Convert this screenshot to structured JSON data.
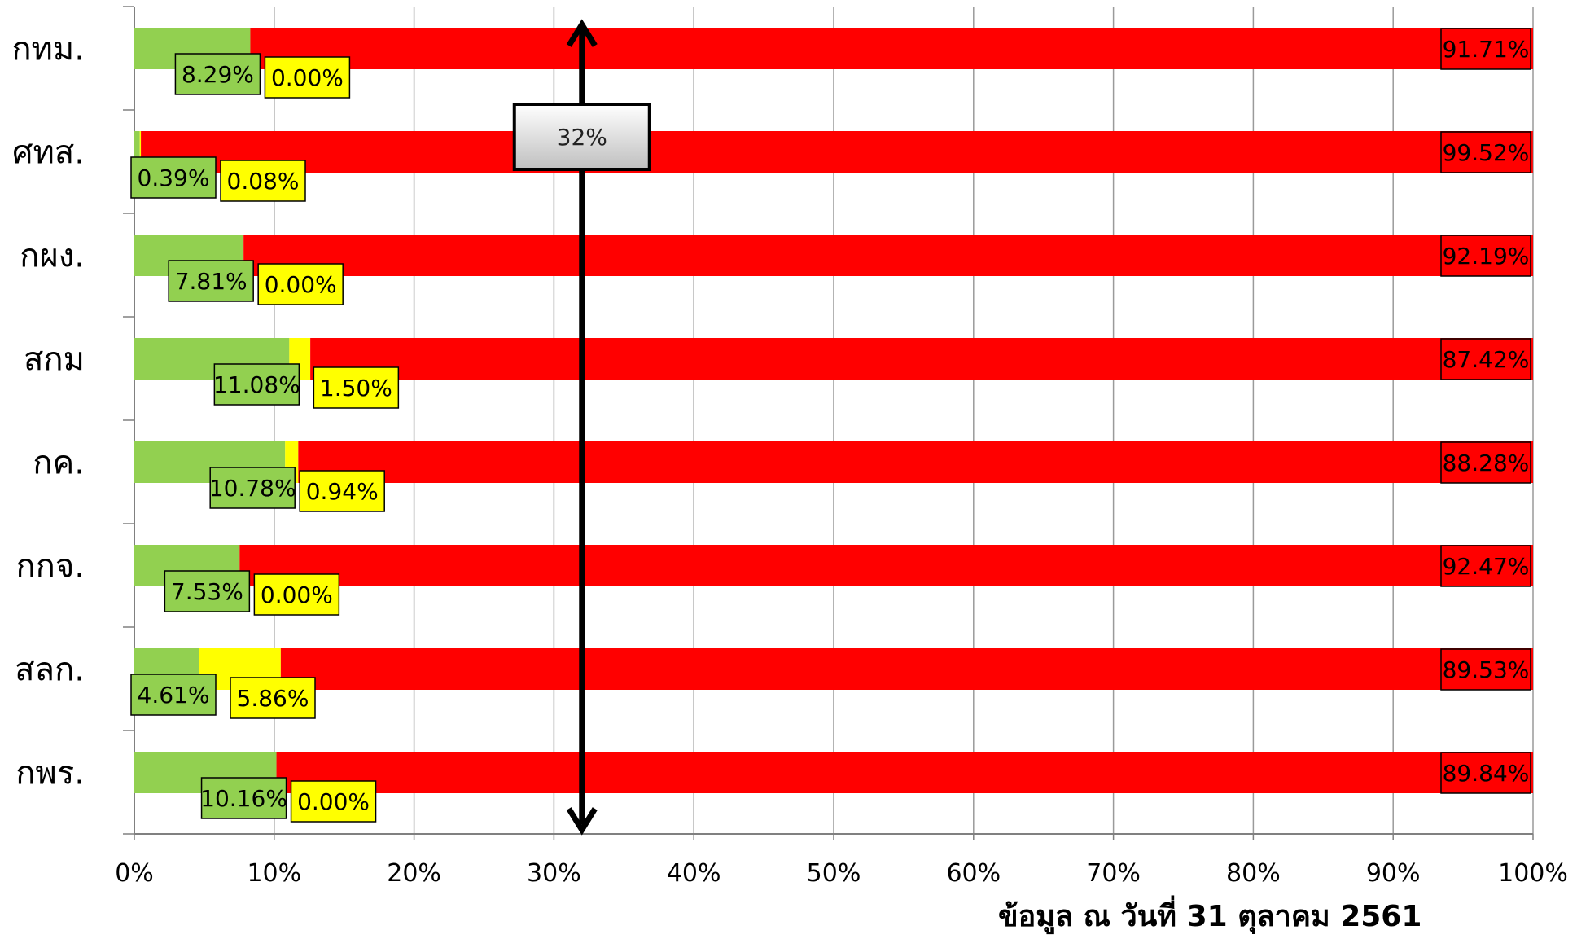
{
  "chart_data": {
    "type": "bar",
    "stacked": true,
    "orientation": "horizontal",
    "categories": [
      "กทม.",
      "ศทส.",
      "กผง.",
      "สกม",
      "กค.",
      "กกจ.",
      "สลก.",
      "กพร."
    ],
    "series": [
      {
        "color": "#92d050",
        "values": [
          8.29,
          0.39,
          7.81,
          11.08,
          10.78,
          7.53,
          4.61,
          10.16
        ],
        "labels": [
          "8.29%",
          "0.39%",
          "7.81%",
          "11.08%",
          "10.78%",
          "7.53%",
          "4.61%",
          "10.16%"
        ]
      },
      {
        "color": "#ffff00",
        "values": [
          0.0,
          0.08,
          0.0,
          1.5,
          0.94,
          0.0,
          5.86,
          0.0
        ],
        "labels": [
          "0.00%",
          "0.08%",
          "0.00%",
          "1.50%",
          "0.94%",
          "0.00%",
          "5.86%",
          "0.00%"
        ]
      },
      {
        "color": "#ff0000",
        "values": [
          91.71,
          99.52,
          92.19,
          87.42,
          88.28,
          92.47,
          89.53,
          89.84
        ],
        "labels": [
          "91.71%",
          "99.52%",
          "92.19%",
          "87.42%",
          "88.28%",
          "92.47%",
          "89.53%",
          "89.84%"
        ]
      }
    ],
    "xlim": [
      0,
      100
    ],
    "xticks": [
      "0%",
      "10%",
      "20%",
      "30%",
      "40%",
      "50%",
      "60%",
      "70%",
      "80%",
      "90%",
      "100%"
    ],
    "grid": true,
    "marker_line": {
      "value": 32,
      "label": "32%"
    }
  },
  "footnote": "ข้อมูล ณ วันที่ 31 ตุลาคม 2561"
}
